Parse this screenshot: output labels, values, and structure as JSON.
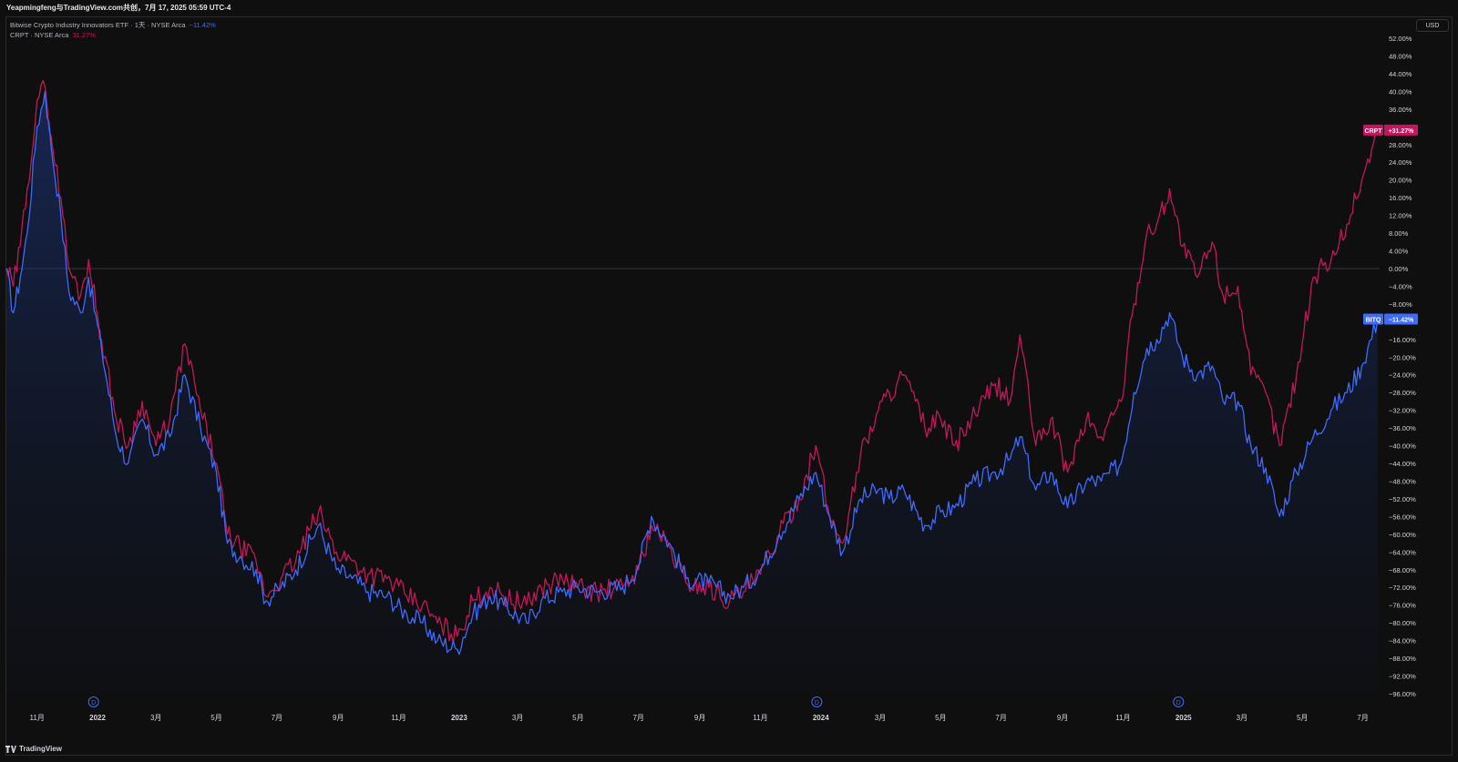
{
  "header": {
    "attribution": "Yeapmingfeng与TradingView.com共创，7月 17, 2025 05:59 UTC-4"
  },
  "legend": {
    "series_1_label": "Bitwise Crypto Industry Innovators ETF · 1天 · NYSE Arca",
    "series_1_value": "−11.42%",
    "series_2_label": "CRPT · NYSE Arca",
    "series_2_value": "31.27%"
  },
  "axis": {
    "currency": "USD"
  },
  "badges": {
    "crpt_name": "CRPT",
    "crpt_value": "+31.27%",
    "bitq_name": "BITQ",
    "bitq_value": "−11.42%"
  },
  "footer": {
    "brand": "TradingView"
  },
  "colors": {
    "bitq": "#3d6bff",
    "crpt": "#c2185b",
    "background": "#0f0f0f",
    "grid_zero": "#363a45",
    "text": "#d1d4dc"
  },
  "chart_data": {
    "type": "line",
    "title": "",
    "xlabel": "",
    "ylabel": "",
    "ylim": [
      -98,
      54
    ],
    "y_unit": "%",
    "x_range": [
      "2021-10",
      "2025-07"
    ],
    "y_ticks": [
      "52.00%",
      "48.00%",
      "44.00%",
      "40.00%",
      "36.00%",
      "32.00%",
      "28.00%",
      "24.00%",
      "20.00%",
      "16.00%",
      "12.00%",
      "8.00%",
      "4.00%",
      "0.00%",
      "−4.00%",
      "−8.00%",
      "−12.00%",
      "−16.00%",
      "−20.00%",
      "−24.00%",
      "−28.00%",
      "−32.00%",
      "−36.00%",
      "−40.00%",
      "−44.00%",
      "−48.00%",
      "−52.00%",
      "−56.00%",
      "−60.00%",
      "−64.00%",
      "−68.00%",
      "−72.00%",
      "−76.00%",
      "−80.00%",
      "−84.00%",
      "−88.00%",
      "−92.00%",
      "−96.00%"
    ],
    "x_ticks": [
      {
        "label": "11月",
        "date": "2021-11"
      },
      {
        "label": "2022",
        "date": "2022-01"
      },
      {
        "label": "3月",
        "date": "2022-03"
      },
      {
        "label": "5月",
        "date": "2022-05"
      },
      {
        "label": "7月",
        "date": "2022-07"
      },
      {
        "label": "9月",
        "date": "2022-09"
      },
      {
        "label": "11月",
        "date": "2022-11"
      },
      {
        "label": "2023",
        "date": "2023-01"
      },
      {
        "label": "3月",
        "date": "2023-03"
      },
      {
        "label": "5月",
        "date": "2023-05"
      },
      {
        "label": "7月",
        "date": "2023-07"
      },
      {
        "label": "9月",
        "date": "2023-09"
      },
      {
        "label": "11月",
        "date": "2023-11"
      },
      {
        "label": "2024",
        "date": "2024-01"
      },
      {
        "label": "3月",
        "date": "2024-03"
      },
      {
        "label": "5月",
        "date": "2024-05"
      },
      {
        "label": "7月",
        "date": "2024-07"
      },
      {
        "label": "9月",
        "date": "2024-09"
      },
      {
        "label": "11月",
        "date": "2024-11"
      },
      {
        "label": "2025",
        "date": "2025-01"
      },
      {
        "label": "3月",
        "date": "2025-03"
      },
      {
        "label": "5月",
        "date": "2025-05"
      },
      {
        "label": "7月",
        "date": "2025-07"
      }
    ],
    "dividend_markers": [
      {
        "label": "D",
        "date": "2021-12-28"
      },
      {
        "label": "D",
        "date": "2023-12-28"
      },
      {
        "label": "D",
        "date": "2024-12-27"
      }
    ],
    "grid": false,
    "series": [
      {
        "name": "BITQ",
        "points": [
          [
            "2021-10-01",
            0
          ],
          [
            "2021-10-08",
            -10
          ],
          [
            "2021-10-15",
            -2
          ],
          [
            "2021-10-22",
            8
          ],
          [
            "2021-11-01",
            32
          ],
          [
            "2021-11-09",
            40
          ],
          [
            "2021-11-15",
            28
          ],
          [
            "2021-11-25",
            12
          ],
          [
            "2021-12-03",
            -5
          ],
          [
            "2021-12-15",
            -10
          ],
          [
            "2021-12-23",
            -2
          ],
          [
            "2022-01-05",
            -18
          ],
          [
            "2022-01-20",
            -38
          ],
          [
            "2022-02-01",
            -44
          ],
          [
            "2022-02-15",
            -34
          ],
          [
            "2022-03-01",
            -42
          ],
          [
            "2022-03-15",
            -38
          ],
          [
            "2022-03-30",
            -24
          ],
          [
            "2022-04-15",
            -36
          ],
          [
            "2022-05-01",
            -46
          ],
          [
            "2022-05-12",
            -62
          ],
          [
            "2022-05-25",
            -65
          ],
          [
            "2022-06-10",
            -68
          ],
          [
            "2022-06-20",
            -75
          ],
          [
            "2022-07-05",
            -72
          ],
          [
            "2022-07-20",
            -68
          ],
          [
            "2022-08-12",
            -58
          ],
          [
            "2022-08-30",
            -68
          ],
          [
            "2022-09-15",
            -70
          ],
          [
            "2022-10-01",
            -73
          ],
          [
            "2022-10-20",
            -74
          ],
          [
            "2022-11-09",
            -78
          ],
          [
            "2022-11-25",
            -80
          ],
          [
            "2022-12-10",
            -84
          ],
          [
            "2022-12-30",
            -86
          ],
          [
            "2023-01-15",
            -78
          ],
          [
            "2023-02-01",
            -74
          ],
          [
            "2023-02-15",
            -76
          ],
          [
            "2023-03-10",
            -80
          ],
          [
            "2023-03-25",
            -75
          ],
          [
            "2023-04-15",
            -73
          ],
          [
            "2023-05-01",
            -72
          ],
          [
            "2023-05-20",
            -73
          ],
          [
            "2023-06-15",
            -72
          ],
          [
            "2023-07-01",
            -67
          ],
          [
            "2023-07-14",
            -56
          ],
          [
            "2023-08-01",
            -62
          ],
          [
            "2023-08-18",
            -70
          ],
          [
            "2023-09-10",
            -71
          ],
          [
            "2023-10-01",
            -74
          ],
          [
            "2023-10-15",
            -72
          ],
          [
            "2023-11-01",
            -68
          ],
          [
            "2023-11-20",
            -60
          ],
          [
            "2023-12-10",
            -52
          ],
          [
            "2023-12-27",
            -46
          ],
          [
            "2024-01-10",
            -56
          ],
          [
            "2024-01-23",
            -64
          ],
          [
            "2024-02-10",
            -52
          ],
          [
            "2024-02-28",
            -50
          ],
          [
            "2024-03-10",
            -52
          ],
          [
            "2024-03-25",
            -50
          ],
          [
            "2024-04-15",
            -58
          ],
          [
            "2024-05-01",
            -55
          ],
          [
            "2024-05-15",
            -54
          ],
          [
            "2024-06-05",
            -48
          ],
          [
            "2024-06-25",
            -46
          ],
          [
            "2024-07-10",
            -43
          ],
          [
            "2024-07-20",
            -38
          ],
          [
            "2024-08-05",
            -50
          ],
          [
            "2024-08-20",
            -46
          ],
          [
            "2024-09-06",
            -54
          ],
          [
            "2024-09-25",
            -48
          ],
          [
            "2024-10-10",
            -48
          ],
          [
            "2024-10-30",
            -44
          ],
          [
            "2024-11-12",
            -28
          ],
          [
            "2024-11-25",
            -18
          ],
          [
            "2024-12-05",
            -16
          ],
          [
            "2024-12-18",
            -10
          ],
          [
            "2024-12-31",
            -20
          ],
          [
            "2025-01-15",
            -24
          ],
          [
            "2025-01-30",
            -22
          ],
          [
            "2025-02-10",
            -30
          ],
          [
            "2025-02-25",
            -30
          ],
          [
            "2025-03-10",
            -40
          ],
          [
            "2025-03-25",
            -45
          ],
          [
            "2025-04-08",
            -56
          ],
          [
            "2025-04-25",
            -46
          ],
          [
            "2025-05-12",
            -38
          ],
          [
            "2025-05-30",
            -32
          ],
          [
            "2025-06-15",
            -28
          ],
          [
            "2025-06-30",
            -22
          ],
          [
            "2025-07-16",
            -11.42
          ]
        ]
      },
      {
        "name": "CRPT",
        "points": [
          [
            "2021-10-01",
            0
          ],
          [
            "2021-10-08",
            -4
          ],
          [
            "2021-10-15",
            5
          ],
          [
            "2021-10-22",
            18
          ],
          [
            "2021-11-01",
            38
          ],
          [
            "2021-11-09",
            41
          ],
          [
            "2021-11-15",
            30
          ],
          [
            "2021-11-25",
            16
          ],
          [
            "2021-12-03",
            0
          ],
          [
            "2021-12-15",
            -6
          ],
          [
            "2021-12-23",
            2
          ],
          [
            "2022-01-05",
            -16
          ],
          [
            "2022-01-20",
            -34
          ],
          [
            "2022-02-01",
            -40
          ],
          [
            "2022-02-15",
            -30
          ],
          [
            "2022-03-01",
            -40
          ],
          [
            "2022-03-15",
            -34
          ],
          [
            "2022-03-30",
            -17
          ],
          [
            "2022-04-15",
            -32
          ],
          [
            "2022-05-01",
            -44
          ],
          [
            "2022-05-12",
            -60
          ],
          [
            "2022-05-25",
            -63
          ],
          [
            "2022-06-10",
            -66
          ],
          [
            "2022-06-20",
            -74
          ],
          [
            "2022-07-05",
            -70
          ],
          [
            "2022-07-20",
            -66
          ],
          [
            "2022-08-12",
            -55
          ],
          [
            "2022-08-30",
            -64
          ],
          [
            "2022-09-15",
            -66
          ],
          [
            "2022-10-01",
            -69
          ],
          [
            "2022-10-20",
            -70
          ],
          [
            "2022-11-09",
            -74
          ],
          [
            "2022-11-25",
            -76
          ],
          [
            "2022-12-10",
            -80
          ],
          [
            "2022-12-30",
            -83
          ],
          [
            "2023-01-15",
            -75
          ],
          [
            "2023-02-01",
            -72
          ],
          [
            "2023-02-15",
            -74
          ],
          [
            "2023-03-10",
            -76
          ],
          [
            "2023-03-25",
            -72
          ],
          [
            "2023-04-15",
            -70
          ],
          [
            "2023-05-01",
            -72
          ],
          [
            "2023-05-20",
            -73
          ],
          [
            "2023-06-15",
            -72
          ],
          [
            "2023-07-01",
            -68
          ],
          [
            "2023-07-14",
            -58
          ],
          [
            "2023-08-01",
            -63
          ],
          [
            "2023-08-18",
            -71
          ],
          [
            "2023-09-10",
            -72
          ],
          [
            "2023-10-01",
            -75
          ],
          [
            "2023-10-15",
            -73
          ],
          [
            "2023-11-01",
            -69
          ],
          [
            "2023-11-20",
            -60
          ],
          [
            "2023-12-10",
            -52
          ],
          [
            "2023-12-27",
            -40
          ],
          [
            "2024-01-10",
            -56
          ],
          [
            "2024-01-23",
            -62
          ],
          [
            "2024-02-10",
            -42
          ],
          [
            "2024-02-28",
            -32
          ],
          [
            "2024-03-10",
            -28
          ],
          [
            "2024-03-25",
            -24
          ],
          [
            "2024-04-15",
            -36
          ],
          [
            "2024-05-01",
            -34
          ],
          [
            "2024-05-15",
            -40
          ],
          [
            "2024-06-05",
            -33
          ],
          [
            "2024-06-25",
            -26
          ],
          [
            "2024-07-10",
            -30
          ],
          [
            "2024-07-20",
            -15
          ],
          [
            "2024-08-05",
            -40
          ],
          [
            "2024-08-20",
            -34
          ],
          [
            "2024-09-06",
            -46
          ],
          [
            "2024-09-25",
            -34
          ],
          [
            "2024-10-10",
            -38
          ],
          [
            "2024-10-30",
            -30
          ],
          [
            "2024-11-12",
            -8
          ],
          [
            "2024-11-25",
            8
          ],
          [
            "2024-12-05",
            10
          ],
          [
            "2024-12-18",
            18
          ],
          [
            "2024-12-31",
            5
          ],
          [
            "2025-01-15",
            -2
          ],
          [
            "2025-01-30",
            6
          ],
          [
            "2025-02-10",
            -6
          ],
          [
            "2025-02-25",
            -4
          ],
          [
            "2025-03-10",
            -24
          ],
          [
            "2025-03-25",
            -28
          ],
          [
            "2025-04-08",
            -40
          ],
          [
            "2025-04-25",
            -24
          ],
          [
            "2025-05-12",
            -2
          ],
          [
            "2025-05-30",
            2
          ],
          [
            "2025-06-15",
            10
          ],
          [
            "2025-06-30",
            20
          ],
          [
            "2025-07-16",
            31.27
          ]
        ]
      }
    ]
  }
}
